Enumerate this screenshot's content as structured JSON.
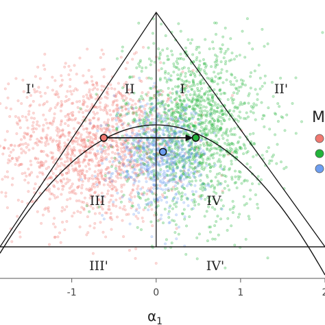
{
  "chart_data": {
    "type": "scatter",
    "xlabel": "α",
    "xlabel_sub": "1",
    "xlim": [
      -1.85,
      2.0
    ],
    "ylim": [
      -0.4,
      2.0
    ],
    "x_ticks": [
      -1,
      0,
      1,
      2
    ],
    "x_tick_labels": [
      "-1",
      "0",
      "1",
      "2"
    ],
    "grid": false,
    "legend": {
      "title": "M",
      "placement": "right",
      "series_colors": [
        "#F07870",
        "#22B33A",
        "#6D9EF0"
      ]
    },
    "region_labels": [
      "I'",
      "II",
      "I",
      "II'",
      "III",
      "IV",
      "III'",
      "IV'"
    ],
    "series": [
      {
        "color": "#F07870",
        "center": [
          -0.75,
          0.85
        ],
        "spread": [
          0.55,
          0.33
        ],
        "count": 1400
      },
      {
        "color": "#22B33A",
        "center": [
          0.45,
          1.0
        ],
        "spread": [
          0.42,
          0.38
        ],
        "count": 1500
      },
      {
        "color": "#6D9EF0",
        "center": [
          0.05,
          0.78
        ],
        "spread": [
          0.28,
          0.22
        ],
        "count": 700
      }
    ],
    "triangle": [
      [
        -1.85,
        0.0
      ],
      [
        0.0,
        2.0
      ],
      [
        2.0,
        0.0
      ]
    ],
    "horizontal_line_y": 0.0,
    "vertical_line_x": 0.0,
    "parabola": {
      "a": -0.32,
      "vertex": [
        0.0,
        1.04
      ],
      "x_range": [
        -1.85,
        2.0
      ]
    },
    "centroids": [
      {
        "series": 0,
        "xy": [
          -0.62,
          0.93
        ]
      },
      {
        "series": 1,
        "xy": [
          0.47,
          0.93
        ]
      },
      {
        "series": 2,
        "xy": [
          0.08,
          0.81
        ]
      }
    ],
    "arrow": {
      "from": [
        -0.62,
        0.93
      ],
      "to": [
        0.47,
        0.93
      ]
    }
  }
}
